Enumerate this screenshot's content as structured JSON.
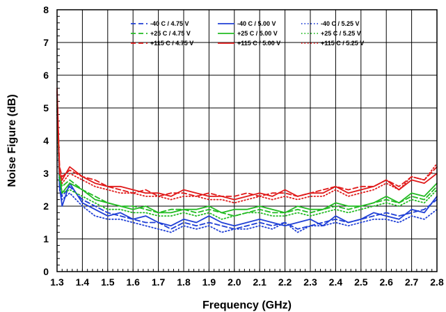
{
  "chart_data": {
    "type": "line",
    "xlabel": "Frequency (GHz)",
    "ylabel": "Noise Figure (dB)",
    "xlim": [
      1.3,
      2.8
    ],
    "ylim": [
      0,
      8
    ],
    "xticks": [
      "1.3",
      "1.4",
      "1.5",
      "1.6",
      "1.7",
      "1.8",
      "1.9",
      "2.0",
      "2.1",
      "2.2",
      "2.3",
      "2.4",
      "2.5",
      "2.6",
      "2.7",
      "2.8"
    ],
    "yticks": [
      "0",
      "1",
      "2",
      "3",
      "4",
      "5",
      "6",
      "7",
      "8"
    ],
    "grid": true,
    "legend_position": "top",
    "x": [
      1.3,
      1.31,
      1.32,
      1.35,
      1.4,
      1.45,
      1.5,
      1.55,
      1.6,
      1.65,
      1.7,
      1.75,
      1.8,
      1.85,
      1.9,
      1.95,
      2.0,
      2.05,
      2.1,
      2.15,
      2.2,
      2.25,
      2.3,
      2.35,
      2.4,
      2.45,
      2.5,
      2.55,
      2.6,
      2.65,
      2.7,
      2.75,
      2.8
    ],
    "series": [
      {
        "name": "-40 C /  4.75 V",
        "color": "#1f3fd6",
        "dash": "dashed",
        "values": [
          5.0,
          2.8,
          2.3,
          2.6,
          2.2,
          2.0,
          1.8,
          1.7,
          1.6,
          1.5,
          1.5,
          1.3,
          1.5,
          1.4,
          1.5,
          1.4,
          1.3,
          1.4,
          1.5,
          1.4,
          1.5,
          1.3,
          1.4,
          1.5,
          1.6,
          1.5,
          1.6,
          1.7,
          1.8,
          1.7,
          1.8,
          1.9,
          2.2
        ]
      },
      {
        "name": "-40 C /  5.00 V",
        "color": "#1f3fd6",
        "dash": "solid",
        "values": [
          5.4,
          2.6,
          2.0,
          2.7,
          2.1,
          1.9,
          1.7,
          1.8,
          1.6,
          1.7,
          1.5,
          1.4,
          1.6,
          1.5,
          1.7,
          1.5,
          1.4,
          1.5,
          1.6,
          1.5,
          1.4,
          1.5,
          1.6,
          1.4,
          1.7,
          1.5,
          1.6,
          1.8,
          1.7,
          1.6,
          1.9,
          1.8,
          2.3
        ]
      },
      {
        "name": "-40 C /  5.25 V",
        "color": "#1f3fd6",
        "dash": "dotted",
        "values": [
          4.8,
          2.5,
          2.2,
          2.4,
          2.0,
          1.7,
          1.6,
          1.6,
          1.5,
          1.4,
          1.3,
          1.2,
          1.4,
          1.3,
          1.4,
          1.2,
          1.3,
          1.3,
          1.4,
          1.3,
          1.5,
          1.2,
          1.4,
          1.4,
          1.5,
          1.4,
          1.5,
          1.6,
          1.6,
          1.5,
          1.7,
          1.6,
          1.9
        ]
      },
      {
        "name": "+25 C /  4.75 V",
        "color": "#22bb22",
        "dash": "dashed",
        "values": [
          5.1,
          3.0,
          2.6,
          2.8,
          2.5,
          2.3,
          2.1,
          2.0,
          2.0,
          1.9,
          1.8,
          1.9,
          1.9,
          1.8,
          1.9,
          1.8,
          1.7,
          1.8,
          1.9,
          1.8,
          1.8,
          1.9,
          1.8,
          1.9,
          2.0,
          1.9,
          2.0,
          2.1,
          2.2,
          2.1,
          2.3,
          2.2,
          2.6
        ]
      },
      {
        "name": "+25 C /  5.00 V",
        "color": "#22bb22",
        "dash": "solid",
        "values": [
          5.3,
          2.9,
          2.4,
          2.7,
          2.5,
          2.2,
          2.1,
          2.0,
          1.9,
          2.0,
          1.8,
          1.8,
          1.9,
          1.9,
          2.0,
          1.8,
          1.9,
          1.9,
          2.0,
          1.9,
          1.8,
          2.0,
          1.9,
          1.9,
          2.1,
          2.0,
          2.0,
          2.1,
          2.3,
          2.1,
          2.4,
          2.3,
          2.7
        ]
      },
      {
        "name": "+25 C /  5.25 V",
        "color": "#22bb22",
        "dash": "dotted",
        "values": [
          4.9,
          2.8,
          2.4,
          2.5,
          2.3,
          2.1,
          1.9,
          1.9,
          1.8,
          1.8,
          1.7,
          1.7,
          1.8,
          1.7,
          1.8,
          1.6,
          1.7,
          1.8,
          1.8,
          1.7,
          1.7,
          1.8,
          1.7,
          1.8,
          1.9,
          1.8,
          1.9,
          2.0,
          2.1,
          2.0,
          2.2,
          2.1,
          2.5
        ]
      },
      {
        "name": "+115 C /  4.75 V",
        "color": "#e01a1a",
        "dash": "dashed",
        "values": [
          5.5,
          3.2,
          2.9,
          3.1,
          2.9,
          2.8,
          2.6,
          2.5,
          2.4,
          2.5,
          2.3,
          2.4,
          2.4,
          2.3,
          2.4,
          2.3,
          2.3,
          2.4,
          2.3,
          2.4,
          2.4,
          2.3,
          2.4,
          2.5,
          2.6,
          2.5,
          2.6,
          2.6,
          2.8,
          2.6,
          2.9,
          2.8,
          3.2
        ]
      },
      {
        "name": "+115 C /  5.00 V",
        "color": "#e01a1a",
        "dash": "solid",
        "values": [
          5.6,
          3.0,
          2.8,
          3.2,
          2.9,
          2.7,
          2.6,
          2.6,
          2.5,
          2.4,
          2.4,
          2.3,
          2.5,
          2.4,
          2.3,
          2.3,
          2.2,
          2.3,
          2.4,
          2.3,
          2.5,
          2.3,
          2.4,
          2.4,
          2.6,
          2.4,
          2.5,
          2.6,
          2.8,
          2.5,
          2.8,
          2.7,
          3.0
        ]
      },
      {
        "name": "+115 C /  5.25 V",
        "color": "#e01a1a",
        "dash": "dotted",
        "values": [
          5.2,
          3.1,
          2.7,
          3.0,
          2.8,
          2.6,
          2.5,
          2.4,
          2.4,
          2.3,
          2.3,
          2.2,
          2.3,
          2.3,
          2.2,
          2.2,
          2.1,
          2.2,
          2.3,
          2.2,
          2.3,
          2.2,
          2.3,
          2.3,
          2.5,
          2.3,
          2.4,
          2.5,
          2.7,
          2.5,
          2.9,
          2.8,
          3.3
        ]
      }
    ]
  }
}
